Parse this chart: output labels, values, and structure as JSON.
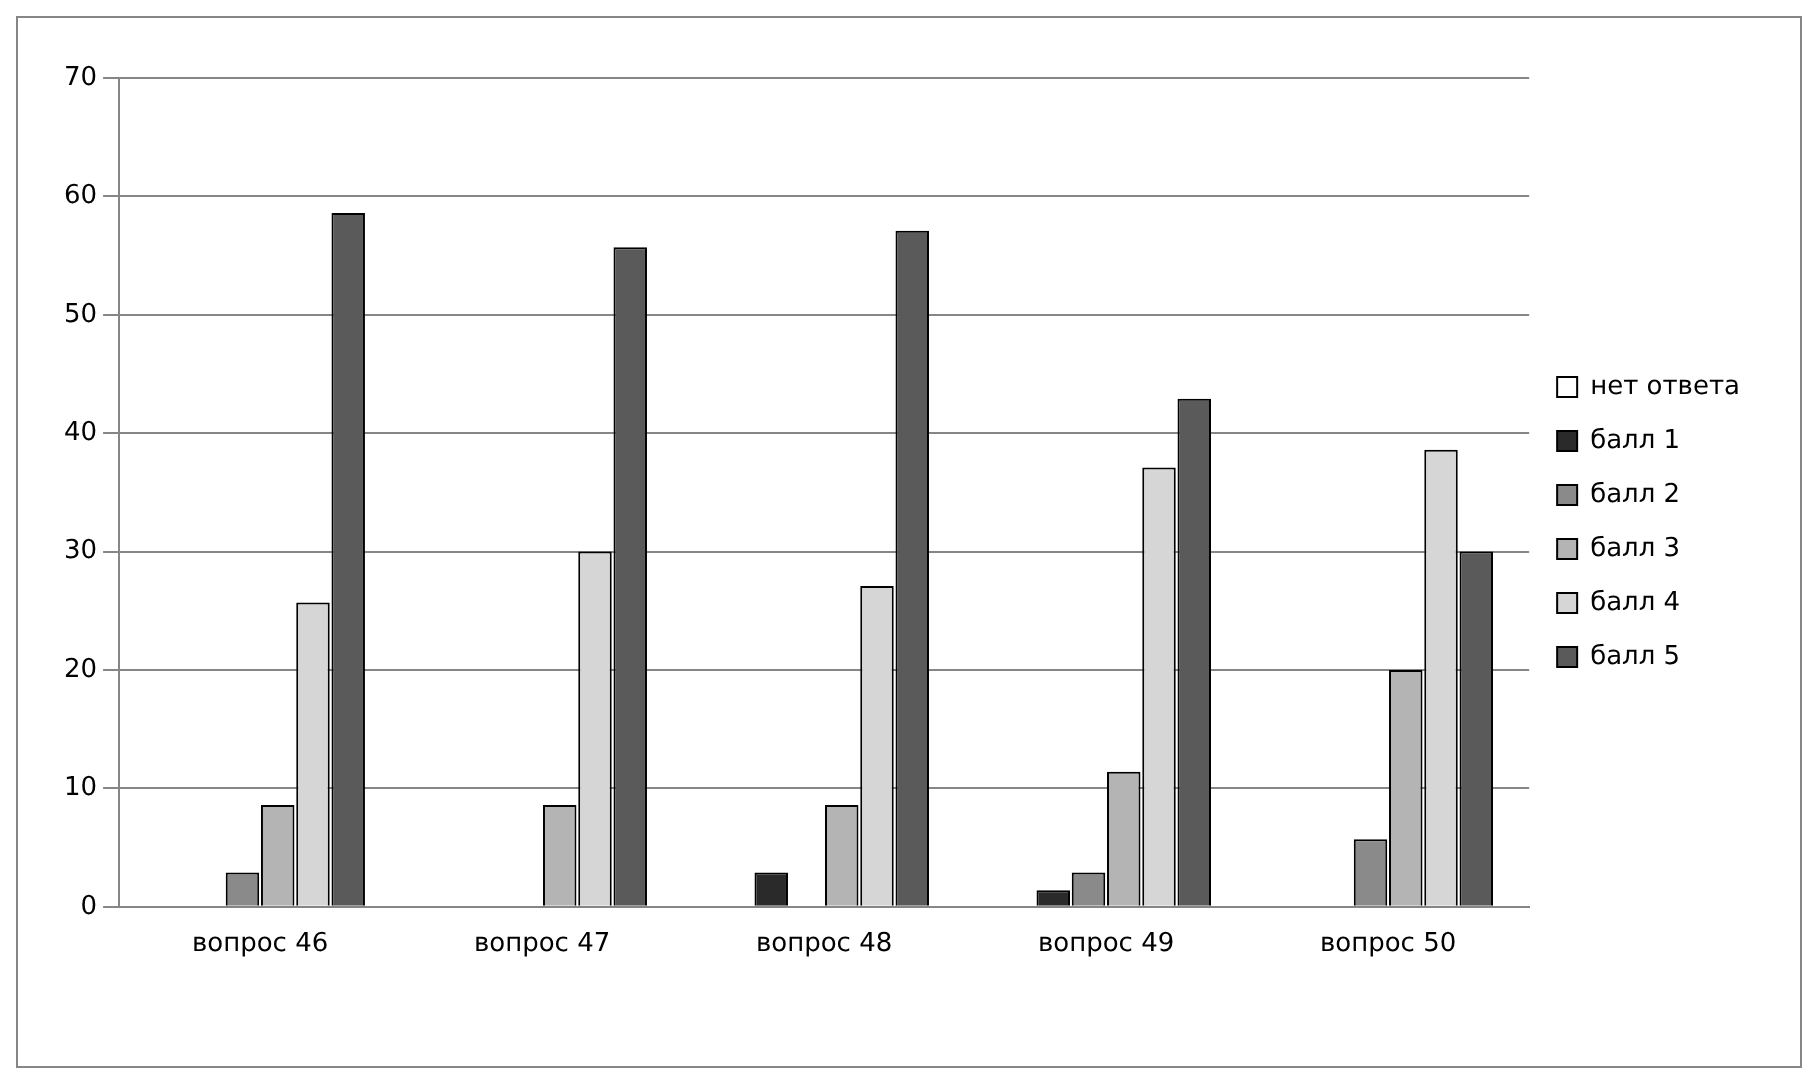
{
  "chart_data": {
    "type": "bar",
    "categories": [
      "вопрос 46",
      "вопрос 47",
      "вопрос 48",
      "вопрос 49",
      "вопрос 50"
    ],
    "series": [
      {
        "name": "нет ответа",
        "color": "#ffffff",
        "values": [
          0,
          0,
          0,
          0,
          0
        ]
      },
      {
        "name": "балл 1",
        "color": "#2a2a2a",
        "values": [
          0,
          0,
          2.9,
          1.4,
          0
        ]
      },
      {
        "name": "балл 2",
        "color": "#8a8a8a",
        "values": [
          2.9,
          0,
          0,
          2.9,
          5.7
        ]
      },
      {
        "name": "балл 3",
        "color": "#b4b4b4",
        "values": [
          8.6,
          8.6,
          8.6,
          11.4,
          20
        ]
      },
      {
        "name": "балл 4",
        "color": "#d6d6d6",
        "values": [
          25.7,
          30,
          27.1,
          37.1,
          38.6
        ]
      },
      {
        "name": "балл 5",
        "color": "#5a5a5a",
        "values": [
          58.6,
          55.7,
          57.1,
          42.9,
          30
        ]
      }
    ],
    "ylim": [
      0,
      70
    ],
    "yticks": [
      0,
      10,
      20,
      30,
      40,
      50,
      60,
      70
    ],
    "grid": "y",
    "legend": "right"
  }
}
